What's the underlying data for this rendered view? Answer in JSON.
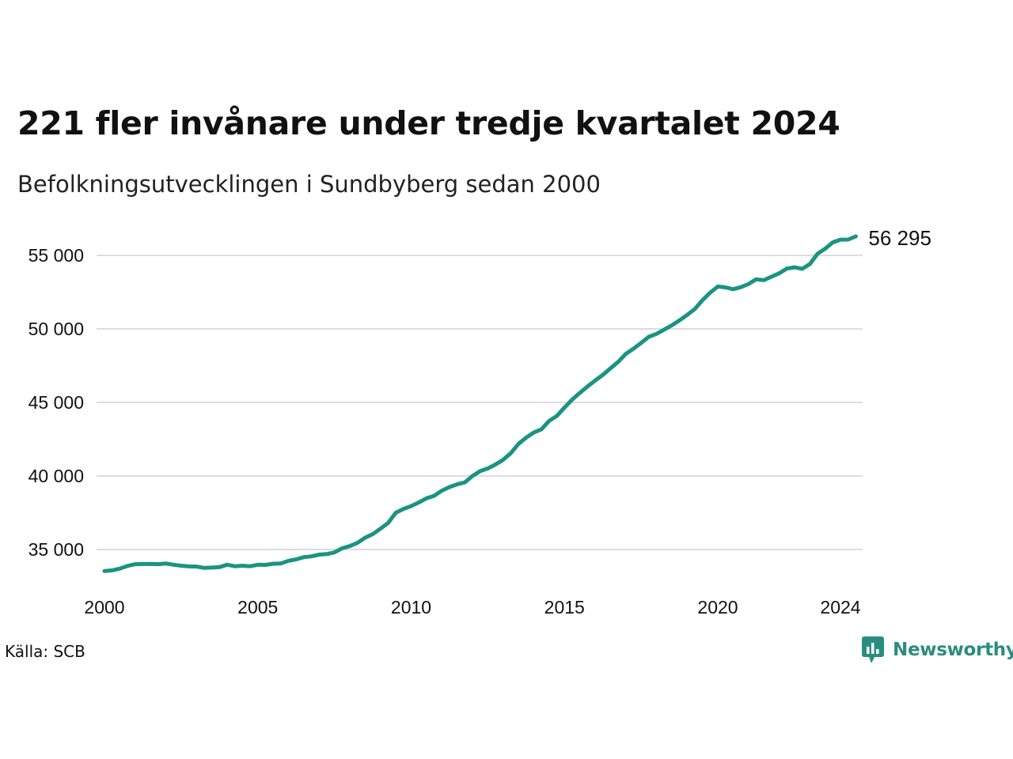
{
  "title": "221 fler invånare under tredje kvartalet 2024",
  "subtitle": "Befolkningsutvecklingen i Sundbyberg sedan 2000",
  "source": "Källa: SCB",
  "brand": {
    "name": "Newsworthy",
    "icon": "newsworthy-logo-icon",
    "color": "#2a8d7f"
  },
  "colors": {
    "line": "#1a9480",
    "grid": "#dddddd",
    "text": "#111111"
  },
  "chart_data": {
    "type": "line",
    "title": "221 fler invånare under tredje kvartalet 2024",
    "subtitle": "Befolkningsutvecklingen i Sundbyberg sedan 2000",
    "xlabel": "",
    "ylabel": "",
    "x_ticks": [
      2000,
      2005,
      2010,
      2015,
      2020,
      2024
    ],
    "y_ticks": [
      35000,
      40000,
      45000,
      50000,
      55000
    ],
    "y_tick_labels": [
      "35 000",
      "40 000",
      "45 000",
      "50 000",
      "55 000"
    ],
    "xlim": [
      2000,
      2024.75
    ],
    "ylim": [
      33000,
      57000
    ],
    "grid": "horizontal",
    "end_label": "56 295",
    "series": [
      {
        "x": [
          2000.0,
          2000.25,
          2000.5,
          2000.75,
          2001.0,
          2001.25,
          2001.5,
          2001.75,
          2002.0,
          2002.25,
          2002.5,
          2002.75,
          2003.0,
          2003.25,
          2003.5,
          2003.75,
          2004.0,
          2004.25,
          2004.5,
          2004.75,
          2005.0,
          2005.25,
          2005.5,
          2005.75,
          2006.0,
          2006.25,
          2006.5,
          2006.75,
          2007.0,
          2007.25,
          2007.5,
          2007.75,
          2008.0,
          2008.25,
          2008.5,
          2008.75,
          2009.0,
          2009.25,
          2009.5,
          2009.75,
          2010.0,
          2010.25,
          2010.5,
          2010.75,
          2011.0,
          2011.25,
          2011.5,
          2011.75,
          2012.0,
          2012.25,
          2012.5,
          2012.75,
          2013.0,
          2013.25,
          2013.5,
          2013.75,
          2014.0,
          2014.25,
          2014.5,
          2014.75,
          2015.0,
          2015.25,
          2015.5,
          2015.75,
          2016.0,
          2016.25,
          2016.5,
          2016.75,
          2017.0,
          2017.25,
          2017.5,
          2017.75,
          2018.0,
          2018.25,
          2018.5,
          2018.75,
          2019.0,
          2019.25,
          2019.5,
          2019.75,
          2020.0,
          2020.25,
          2020.5,
          2020.75,
          2021.0,
          2021.25,
          2021.5,
          2021.75,
          2022.0,
          2022.25,
          2022.5,
          2022.75,
          2023.0,
          2023.25,
          2023.5,
          2023.75,
          2024.0,
          2024.25,
          2024.5
        ],
        "values": [
          33530,
          33580,
          33700,
          33880,
          34000,
          34010,
          34020,
          34000,
          34050,
          33960,
          33900,
          33850,
          33840,
          33750,
          33770,
          33800,
          33960,
          33860,
          33900,
          33860,
          33960,
          33950,
          34030,
          34050,
          34230,
          34330,
          34480,
          34530,
          34650,
          34690,
          34800,
          35080,
          35230,
          35450,
          35800,
          36050,
          36420,
          36800,
          37500,
          37760,
          37950,
          38200,
          38480,
          38650,
          39000,
          39250,
          39430,
          39560,
          40000,
          40330,
          40510,
          40780,
          41100,
          41550,
          42180,
          42600,
          42950,
          43180,
          43750,
          44080,
          44650,
          45190,
          45650,
          46080,
          46490,
          46870,
          47320,
          47760,
          48300,
          48650,
          49050,
          49460,
          49660,
          49950,
          50240,
          50580,
          50950,
          51350,
          51950,
          52460,
          52880,
          52820,
          52700,
          52840,
          53050,
          53370,
          53310,
          53550,
          53780,
          54100,
          54190,
          54080,
          54410,
          55100,
          55450,
          55880,
          56070,
          56074,
          56295
        ]
      }
    ]
  }
}
